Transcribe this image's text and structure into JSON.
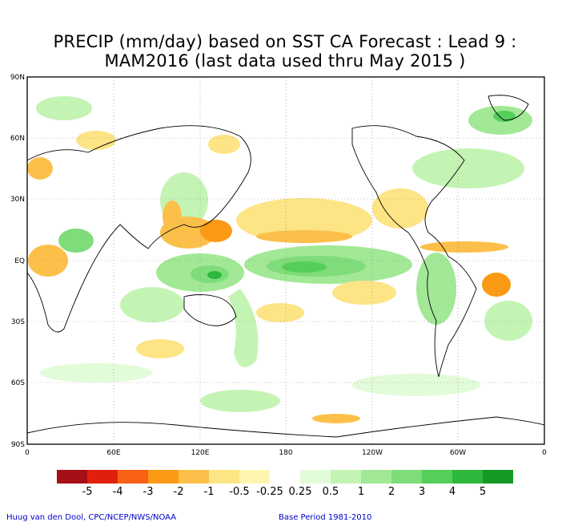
{
  "title_line1": "PRECIP (mm/day) based on SST CA Forecast : Lead 9 :",
  "title_line2": "MAM2016 (last data used thru May 2015 )",
  "lat_labels": [
    "90N",
    "60N",
    "30N",
    "EQ",
    "30S",
    "60S",
    "90S"
  ],
  "lon_labels": [
    "0",
    "60E",
    "120E",
    "180",
    "120W",
    "60W",
    "0"
  ],
  "legend": {
    "labels": [
      "-5",
      "-4",
      "-3",
      "-2",
      "-1",
      "-0.5",
      "-0.25",
      "0.25",
      "0.5",
      "1",
      "2",
      "3",
      "4",
      "5"
    ],
    "colors": [
      "#a50f15",
      "#e0200d",
      "#f76015",
      "#fb9a14",
      "#fcc04a",
      "#fde484",
      "#fef5b0",
      "#ffffff",
      "#e2fbd8",
      "#c4f4b4",
      "#a2e896",
      "#7fdc7a",
      "#55cf5a",
      "#2db83c",
      "#139a25"
    ]
  },
  "footer": {
    "credit": "Huug van den Dool, CPC/NCEP/NWS/NOAA",
    "base_period": "Base Period 1981-2010"
  }
}
